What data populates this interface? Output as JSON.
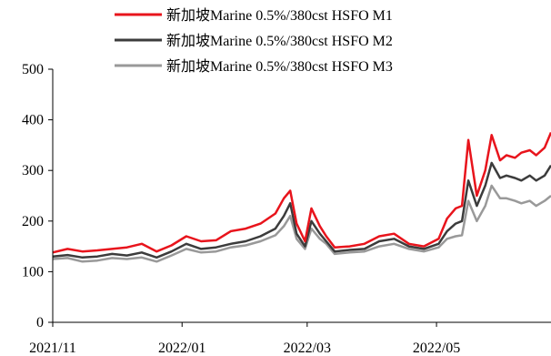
{
  "chart_data": {
    "type": "line",
    "title": "",
    "xlabel": "",
    "ylabel": "",
    "ylim": [
      0,
      500
    ],
    "yticks": [
      0,
      100,
      200,
      300,
      400,
      500
    ],
    "xticks": [
      "2021/11",
      "2022/01",
      "2022/03",
      "2022/05"
    ],
    "xtick_dates": [
      "2021-11-01",
      "2022-01-01",
      "2022-03-01",
      "2022-05-01"
    ],
    "xlim": [
      "2021-11-01",
      "2022-06-24"
    ],
    "grid": false,
    "legend_position": "top-right",
    "x": [
      "2021-11-01",
      "2021-11-08",
      "2021-11-15",
      "2021-11-22",
      "2021-11-29",
      "2021-12-06",
      "2021-12-13",
      "2021-12-20",
      "2021-12-27",
      "2022-01-03",
      "2022-01-10",
      "2022-01-17",
      "2022-01-24",
      "2022-01-31",
      "2022-02-07",
      "2022-02-14",
      "2022-02-18",
      "2022-02-21",
      "2022-02-24",
      "2022-02-28",
      "2022-03-03",
      "2022-03-07",
      "2022-03-10",
      "2022-03-14",
      "2022-03-21",
      "2022-03-28",
      "2022-04-04",
      "2022-04-11",
      "2022-04-18",
      "2022-04-25",
      "2022-05-02",
      "2022-05-06",
      "2022-05-10",
      "2022-05-13",
      "2022-05-16",
      "2022-05-20",
      "2022-05-24",
      "2022-05-27",
      "2022-05-31",
      "2022-06-03",
      "2022-06-07",
      "2022-06-10",
      "2022-06-14",
      "2022-06-17",
      "2022-06-21",
      "2022-06-24"
    ],
    "series": [
      {
        "name": "新加坡Marine 0.5%/380cst HSFO M1",
        "color": "#e8141c",
        "values": [
          138,
          145,
          140,
          142,
          145,
          148,
          155,
          140,
          152,
          170,
          160,
          162,
          180,
          185,
          195,
          215,
          245,
          260,
          195,
          160,
          225,
          190,
          170,
          148,
          150,
          155,
          170,
          175,
          155,
          150,
          165,
          205,
          225,
          230,
          360,
          250,
          300,
          370,
          320,
          330,
          325,
          335,
          340,
          330,
          345,
          375
        ]
      },
      {
        "name": "新加坡Marine 0.5%/380cst HSFO M2",
        "color": "#3c3c3c",
        "values": [
          130,
          133,
          128,
          130,
          135,
          132,
          138,
          128,
          140,
          155,
          145,
          148,
          155,
          160,
          170,
          185,
          210,
          235,
          175,
          150,
          200,
          175,
          160,
          140,
          143,
          145,
          160,
          165,
          150,
          145,
          155,
          180,
          195,
          200,
          280,
          230,
          270,
          315,
          285,
          290,
          285,
          280,
          290,
          280,
          290,
          310
        ]
      },
      {
        "name": "新加坡Marine 0.5%/380cst HSFO M3",
        "color": "#999999",
        "values": [
          125,
          127,
          120,
          122,
          127,
          125,
          128,
          120,
          132,
          145,
          138,
          140,
          148,
          152,
          160,
          172,
          190,
          210,
          165,
          145,
          185,
          165,
          155,
          135,
          138,
          140,
          150,
          155,
          145,
          140,
          148,
          165,
          170,
          172,
          240,
          200,
          230,
          270,
          245,
          245,
          240,
          235,
          240,
          230,
          240,
          250
        ]
      }
    ]
  }
}
